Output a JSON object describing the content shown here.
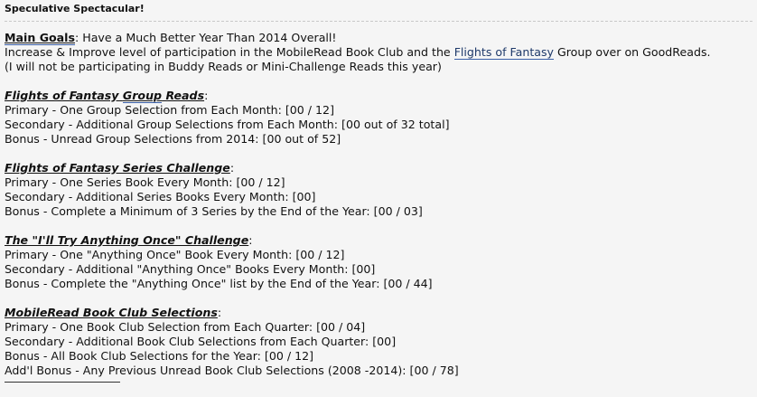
{
  "post_title": "Speculative Spectacular!",
  "main": {
    "heading": "Main Goals",
    "heading_rest": ": Have a Much Better Year Than 2014 Overall!",
    "line2_pre": "Increase & Improve level of participation in the MobileRead Book Club and the ",
    "line2_link": "Flights of Fantasy",
    "line2_post": " Group over on GoodReads.",
    "line3": "(I will not be participating in Buddy Reads or Mini-Challenge Reads this year)"
  },
  "sections": [
    {
      "heading_a": "Flights of Fantasy ",
      "heading_link": "Group",
      "heading_b": " Reads",
      "items": [
        "Primary - One Group Selection from Each Month: [00 / 12]",
        "Secondary - Additional Group Selections from Each Month: [00 out of 32 total]",
        "Bonus - Unread Group Selections from 2014: [00 out of 52]"
      ]
    },
    {
      "heading": "Flights of Fantasy Series Challenge",
      "items": [
        "Primary - One Series Book Every Month: [00 / 12]",
        "Secondary - Additional Series Books Every Month: [00]",
        "Bonus - Complete a Minimum of 3 Series by the End of the Year: [00 / 03]"
      ]
    },
    {
      "heading": "The \"I'll Try Anything Once\" Challenge",
      "items": [
        "Primary - One \"Anything Once\" Book Every Month: [00 / 12]",
        "Secondary - Additional \"Anything Once\" Books Every Month: [00]",
        "Bonus - Complete the \"Anything Once\" list by the End of the Year: [00 / 44]"
      ]
    },
    {
      "heading": "MobileRead Book Club Selections",
      "items": [
        "Primary - One Book Club Selection from Each Quarter: [00 / 04]",
        "Secondary - Additional Book Club Selections from Each Quarter: [00]",
        "Bonus - All Book Club Selections for the Year: [00 / 12]",
        "Add'l Bonus - Any Previous Unread Book Club Selections (2008 -2014): [00 / 78]"
      ]
    }
  ],
  "colon": ":"
}
